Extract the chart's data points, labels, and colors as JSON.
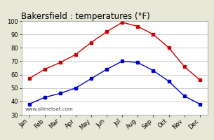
{
  "title": "Bakersfield : temperatures (°F)",
  "months": [
    "Jan",
    "Feb",
    "Mar",
    "Apr",
    "May",
    "Jun",
    "Jul",
    "Aug",
    "Sep",
    "Oct",
    "Nov",
    "Dec"
  ],
  "high_temps": [
    57,
    64,
    69,
    75,
    84,
    92,
    99,
    96,
    90,
    80,
    66,
    56
  ],
  "low_temps": [
    38,
    43,
    46,
    50,
    57,
    64,
    70,
    69,
    63,
    55,
    44,
    38
  ],
  "high_color": "#cc0000",
  "low_color": "#0000cc",
  "marker": "s",
  "marker_size": 2.5,
  "line_width": 1.0,
  "ylim": [
    30,
    100
  ],
  "yticks": [
    30,
    40,
    50,
    60,
    70,
    80,
    90,
    100
  ],
  "bg_color": "#e8e8d8",
  "plot_bg": "#ffffff",
  "grid_color": "#bbbbbb",
  "title_fontsize": 8.5,
  "tick_fontsize": 6,
  "watermark": "www.allmetsat.com",
  "watermark_fontsize": 5
}
